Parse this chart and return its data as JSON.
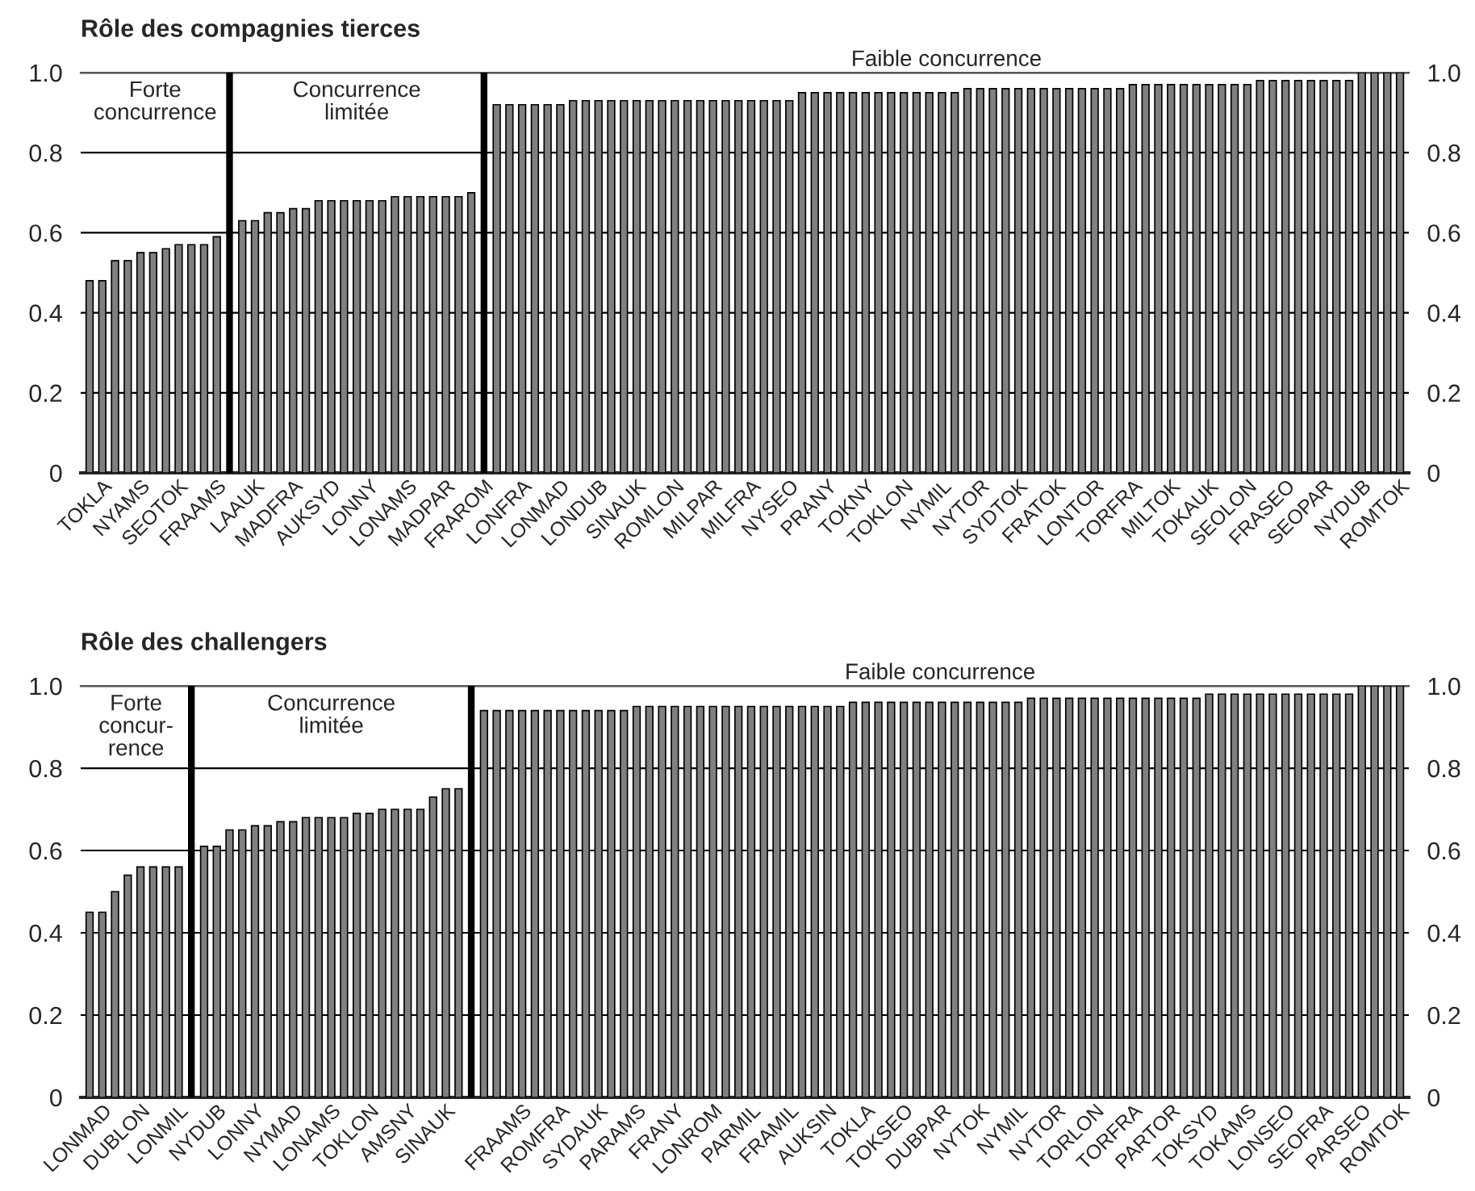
{
  "chart_data": [
    {
      "type": "bar",
      "title": "Rôle des compagnies tierces",
      "categories": [
        null,
        "TOKLA",
        null,
        null,
        "NYAMS",
        null,
        null,
        "SEOTOK",
        null,
        null,
        "FRAAMS",
        null,
        null,
        "LAAUK",
        null,
        null,
        "MADFRA",
        null,
        null,
        "AUKSYD",
        null,
        null,
        "LONNY",
        null,
        null,
        "LONAMS",
        null,
        null,
        "MADPAR",
        null,
        null,
        "FRAROM",
        null,
        null,
        "LONFRA",
        null,
        null,
        "LONMAD",
        null,
        null,
        "LONDUB",
        null,
        null,
        "SINAUK",
        null,
        null,
        "ROMLON",
        null,
        null,
        "MILPAR",
        null,
        null,
        "MILFRA",
        null,
        null,
        "NYSEO",
        null,
        null,
        "PRANY",
        null,
        null,
        "TOKNY",
        null,
        null,
        "TOKLON",
        null,
        null,
        "NYMIL",
        null,
        null,
        "NYTOR",
        null,
        null,
        "SYDTOK",
        null,
        null,
        "FRATOK",
        null,
        null,
        "LONTOR",
        null,
        null,
        "TORFRA",
        null,
        null,
        "MILTOK",
        null,
        null,
        "TOKAUK",
        null,
        null,
        "SEOLON",
        null,
        null,
        "FRASEO",
        null,
        null,
        "SEOPAR",
        null,
        null,
        "NYDUB",
        null,
        null,
        "ROMTOK"
      ],
      "values": [
        0.48,
        0.48,
        0.53,
        0.53,
        0.55,
        0.55,
        0.56,
        0.57,
        0.57,
        0.57,
        0.59,
        null,
        0.63,
        0.63,
        0.65,
        0.65,
        0.66,
        0.66,
        0.68,
        0.68,
        0.68,
        0.68,
        0.68,
        0.68,
        0.69,
        0.69,
        0.69,
        0.69,
        0.69,
        0.69,
        0.7,
        null,
        0.92,
        0.92,
        0.92,
        0.92,
        0.92,
        0.92,
        0.93,
        0.93,
        0.93,
        0.93,
        0.93,
        0.93,
        0.93,
        0.93,
        0.93,
        0.93,
        0.93,
        0.93,
        0.93,
        0.93,
        0.93,
        0.93,
        0.93,
        0.93,
        0.95,
        0.95,
        0.95,
        0.95,
        0.95,
        0.95,
        0.95,
        0.95,
        0.95,
        0.95,
        0.95,
        0.95,
        0.95,
        0.96,
        0.96,
        0.96,
        0.96,
        0.96,
        0.96,
        0.96,
        0.96,
        0.96,
        0.96,
        0.96,
        0.96,
        0.96,
        0.97,
        0.97,
        0.97,
        0.97,
        0.97,
        0.97,
        0.97,
        0.97,
        0.97,
        0.97,
        0.98,
        0.98,
        0.98,
        0.98,
        0.98,
        0.98,
        0.98,
        0.98,
        1.0,
        1.0,
        1.0,
        1.0
      ],
      "color": "#808080",
      "ylim": [
        0,
        1
      ],
      "yticks": [
        0,
        0.2,
        0.4,
        0.6,
        0.8,
        {
          "value": 1,
          "label": "1.0"
        }
      ],
      "y2lim": [
        0,
        1
      ],
      "y2ticks": [
        0,
        0.2,
        0.4,
        0.6,
        0.8,
        {
          "value": 1,
          "label": "1.0"
        }
      ],
      "grid": "y",
      "annotations": [
        "Forte\nconcurrence",
        "Concurrence\nlimitée",
        "Faible concurrence"
      ]
    },
    {
      "type": "bar",
      "title": "Rôle des challengers",
      "categories": [
        null,
        "LONMAD",
        null,
        null,
        "DUBLON",
        null,
        null,
        "LONMIL",
        null,
        null,
        "NYDUB",
        null,
        null,
        "LONNY",
        null,
        null,
        "NYMAD",
        null,
        null,
        "LONAMS",
        null,
        null,
        "TOKLON",
        null,
        null,
        "AMSNY",
        null,
        null,
        "SINAUK",
        null,
        null,
        null,
        null,
        null,
        "FRAAMS",
        null,
        null,
        "ROMFRA",
        null,
        null,
        "SYDAUK",
        null,
        null,
        "PARAMS",
        null,
        null,
        "FRANY",
        null,
        null,
        "LONROM",
        null,
        null,
        "PARMIL",
        null,
        null,
        "FRAMIL",
        null,
        null,
        "AUKSIN",
        null,
        null,
        "TOKLA",
        null,
        null,
        "TOKSEO",
        null,
        null,
        "DUBPAR",
        null,
        null,
        "NYTOK",
        null,
        null,
        "NYMIL",
        null,
        null,
        "NYTOR",
        null,
        null,
        "TORLON",
        null,
        null,
        "TORFRA",
        null,
        null,
        "PARTOR",
        null,
        null,
        "TOKSYD",
        null,
        null,
        "TOKAMS",
        null,
        null,
        "LONSEO",
        null,
        null,
        "SEOFRA",
        null,
        null,
        "PARSEO",
        null,
        null,
        "ROMTOK"
      ],
      "values": [
        0.45,
        0.45,
        0.5,
        0.54,
        0.56,
        0.56,
        0.56,
        0.56,
        null,
        0.61,
        0.61,
        0.65,
        0.65,
        0.66,
        0.66,
        0.67,
        0.67,
        0.68,
        0.68,
        0.68,
        0.68,
        0.69,
        0.69,
        0.7,
        0.7,
        0.7,
        0.7,
        0.73,
        0.75,
        0.75,
        null,
        0.94,
        0.94,
        0.94,
        0.94,
        0.94,
        0.94,
        0.94,
        0.94,
        0.94,
        0.94,
        0.94,
        0.94,
        0.95,
        0.95,
        0.95,
        0.95,
        0.95,
        0.95,
        0.95,
        0.95,
        0.95,
        0.95,
        0.95,
        0.95,
        0.95,
        0.95,
        0.95,
        0.95,
        0.95,
        0.96,
        0.96,
        0.96,
        0.96,
        0.96,
        0.96,
        0.96,
        0.96,
        0.96,
        0.96,
        0.96,
        0.96,
        0.96,
        0.96,
        0.97,
        0.97,
        0.97,
        0.97,
        0.97,
        0.97,
        0.97,
        0.97,
        0.97,
        0.97,
        0.97,
        0.97,
        0.97,
        0.97,
        0.98,
        0.98,
        0.98,
        0.98,
        0.98,
        0.98,
        0.98,
        0.98,
        0.98,
        0.98,
        0.98,
        0.98,
        1.0,
        1.0,
        1.0,
        1.0
      ],
      "color": "#808080",
      "ylim": [
        0,
        1
      ],
      "yticks": [
        0,
        0.2,
        0.4,
        0.6,
        0.8,
        {
          "value": 1,
          "label": "1.0"
        }
      ],
      "y2lim": [
        0,
        1
      ],
      "y2ticks": [
        0,
        0.2,
        0.4,
        0.6,
        0.8,
        {
          "value": 1,
          "label": "1.0"
        }
      ],
      "grid": "y",
      "annotations": [
        "Forte\nconcur-\nrence",
        "Concurrence\nlimitée",
        "Faible concurrence"
      ]
    }
  ]
}
